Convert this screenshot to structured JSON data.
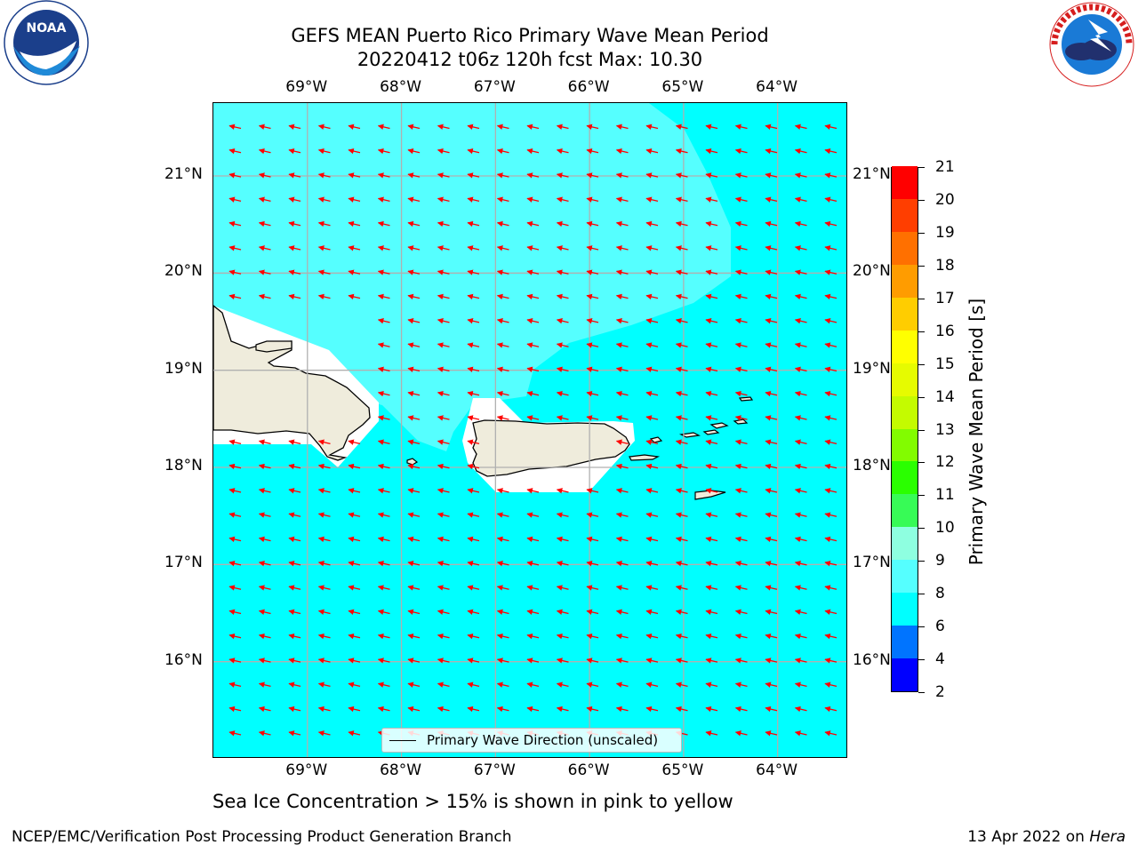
{
  "header": {
    "title_line1": "GEFS MEAN Puerto Rico Primary Wave Mean Period",
    "title_line2": "20220412 t06z 120h fcst   Max: 10.30"
  },
  "logos": {
    "left": {
      "name": "noaa-logo",
      "text": "NOAA",
      "ring_text": "NATIONAL OCEANIC AND ATMOSPHERIC ADMINISTRATION · U.S. DEPARTMENT OF COMMERCE"
    },
    "right": {
      "name": "nws-logo",
      "ring_text": "NATIONAL WEATHER SERVICE"
    }
  },
  "map": {
    "lon_labels": [
      "69°W",
      "68°W",
      "67°W",
      "66°W",
      "65°W",
      "64°W"
    ],
    "lat_labels": [
      "21°N",
      "20°N",
      "19°N",
      "18°N",
      "17°N",
      "16°N"
    ],
    "lon_range": [
      -70.0,
      -63.25
    ],
    "lat_range": [
      15.0,
      21.75
    ],
    "arrow_direction": "toward west-southwest",
    "legend_label": "Primary Wave Direction (unscaled)"
  },
  "colors": {
    "ocean_main": "#00ffff",
    "ocean_light": "#55ffff",
    "land": "#efecdc",
    "arrow": "#ff0000",
    "grid": "#b0b0b0"
  },
  "colorbar": {
    "label": "Primary Wave Mean Period [s]",
    "ticks": [
      "2",
      "4",
      "6",
      "8",
      "9",
      "10",
      "11",
      "12",
      "13",
      "14",
      "15",
      "16",
      "17",
      "18",
      "19",
      "20",
      "21"
    ],
    "colors": [
      "#0000ff",
      "#0074ff",
      "#00ffff",
      "#55ffff",
      "#8effe0",
      "#37fb56",
      "#2aff00",
      "#82fc00",
      "#c4fb00",
      "#e6fb00",
      "#ffff00",
      "#ffcd00",
      "#ff9c00",
      "#ff7000",
      "#ff3e00",
      "#ff0000"
    ]
  },
  "subcaption": "Sea Ice Concentration > 15% is shown in pink to yellow",
  "footer": {
    "left": "NCEP/EMC/Verification Post Processing Product Generation Branch",
    "right_prefix": "13 Apr 2022 on ",
    "right_host": "Hera"
  }
}
